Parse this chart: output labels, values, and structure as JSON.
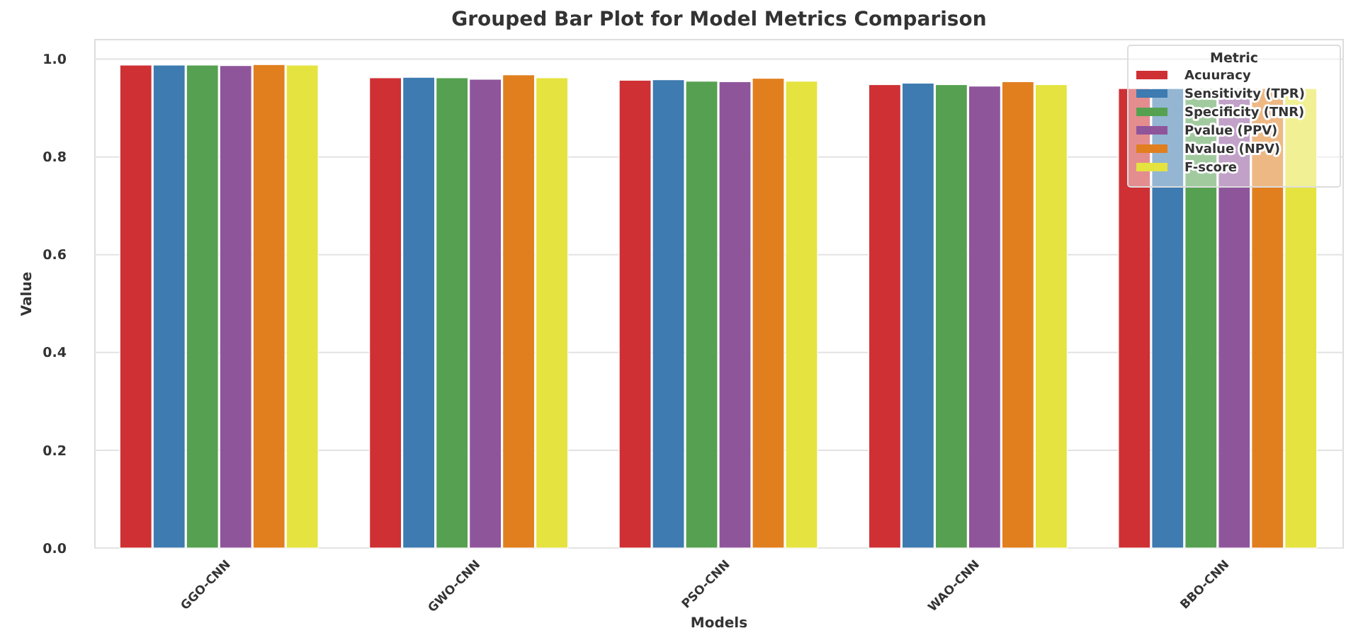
{
  "chart_data": {
    "type": "bar",
    "title": "Grouped Bar Plot for Model Metrics Comparison",
    "xlabel": "Models",
    "ylabel": "Value",
    "legend_title": "Metric",
    "categories": [
      "GGO-CNN",
      "GWO-CNN",
      "PSO-CNN",
      "WAO-CNN",
      "BBO-CNN"
    ],
    "series": [
      {
        "name": "Acuuracy",
        "color": "#ce3034",
        "values": [
          0.988,
          0.962,
          0.957,
          0.948,
          0.94
        ]
      },
      {
        "name": "Sensitivity (TPR)",
        "color": "#3d7bb0",
        "values": [
          0.988,
          0.963,
          0.958,
          0.951,
          0.94
        ]
      },
      {
        "name": "Specificity (TNR)",
        "color": "#55a151",
        "values": [
          0.988,
          0.962,
          0.955,
          0.948,
          0.94
        ]
      },
      {
        "name": "Pvalue (PPV)",
        "color": "#8f559b",
        "values": [
          0.987,
          0.959,
          0.954,
          0.945,
          0.94
        ]
      },
      {
        "name": "Nvalue (NPV)",
        "color": "#e17f1f",
        "values": [
          0.989,
          0.968,
          0.961,
          0.954,
          0.94
        ]
      },
      {
        "name": "F-score",
        "color": "#e5e33f",
        "values": [
          0.988,
          0.962,
          0.955,
          0.948,
          0.94
        ]
      }
    ],
    "ylim": [
      0,
      1.04
    ],
    "yticks": [
      {
        "value": 0,
        "label": "0.0"
      },
      0.2,
      0.4,
      0.6,
      0.8,
      {
        "value": 1,
        "label": "1.0"
      }
    ],
    "grid": "y",
    "legend": "top right"
  }
}
